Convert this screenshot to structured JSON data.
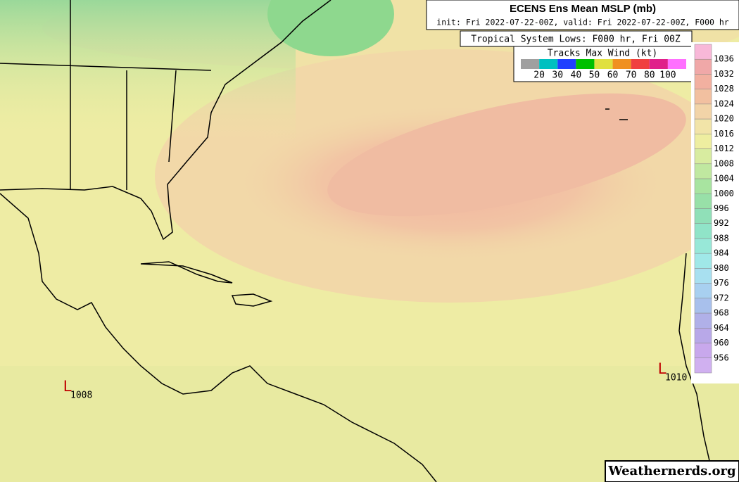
{
  "header": {
    "title": "ECENS Ens Mean MSLP (mb)",
    "subtitle": "init: Fri 2022-07-22-00Z, valid: Fri 2022-07-22-00Z, F000 hr"
  },
  "lows_box": {
    "title": "Tropical System Lows: F000 hr, Fri 00Z"
  },
  "tracks_legend": {
    "title": "Tracks Max Wind (kt)",
    "colors": [
      "#a0a0a0",
      "#00c0c0",
      "#2040ff",
      "#00c000",
      "#e0e040",
      "#f09020",
      "#f04040",
      "#e0208a",
      "#ff70ff"
    ],
    "labels": [
      20,
      30,
      40,
      50,
      60,
      70,
      80,
      100
    ]
  },
  "colorbar": {
    "levels": [
      1036,
      1032,
      1028,
      1024,
      1020,
      1016,
      1012,
      1008,
      1004,
      1000,
      996,
      992,
      988,
      984,
      980,
      976,
      972,
      968,
      964,
      960,
      956
    ],
    "colors": [
      "#f8b8d8",
      "#f0a8a8",
      "#f2b0a0",
      "#f2c0a0",
      "#f2d4a8",
      "#f2e4a8",
      "#eeeea0",
      "#d8eca0",
      "#c0e8a0",
      "#a8e4a0",
      "#98e0a8",
      "#90e0b8",
      "#90e4c8",
      "#98e8d8",
      "#a0e8e8",
      "#a8e0f0",
      "#a8d0f0",
      "#a8c0ec",
      "#b0b0e8",
      "#b8a8e8",
      "#c8a8ec",
      "#d0b0f0"
    ]
  },
  "lows": [
    {
      "letter": "L",
      "pressure": "1008"
    },
    {
      "letter": "L",
      "pressure": "1010"
    }
  ],
  "watermark": "Weathernerds.org"
}
